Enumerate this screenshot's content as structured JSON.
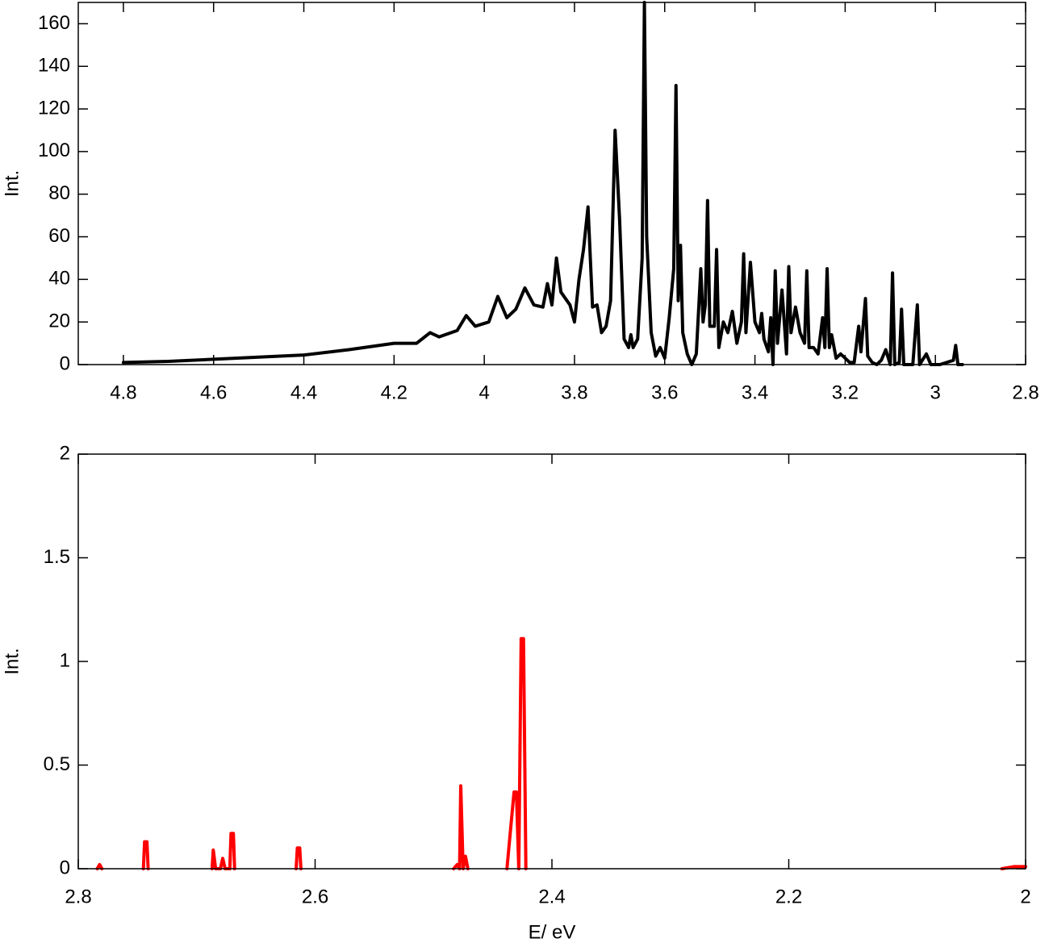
{
  "chart_data": [
    {
      "type": "line",
      "y_label": "Int.",
      "xlim": [
        4.9,
        2.8
      ],
      "xticks": [
        4.8,
        4.6,
        4.4,
        4.2,
        4,
        3.8,
        3.6,
        3.4,
        3.2,
        3,
        2.8
      ],
      "ylim": [
        0,
        170
      ],
      "yticks": [
        0,
        20,
        40,
        60,
        80,
        100,
        120,
        140,
        160
      ],
      "series": [
        {
          "color": "#000000",
          "x": [
            4.8,
            4.7,
            4.6,
            4.5,
            4.4,
            4.3,
            4.2,
            4.15,
            4.12,
            4.1,
            4.06,
            4.04,
            4.02,
            3.99,
            3.97,
            3.95,
            3.93,
            3.91,
            3.89,
            3.87,
            3.86,
            3.85,
            3.84,
            3.83,
            3.81,
            3.8,
            3.79,
            3.78,
            3.77,
            3.76,
            3.75,
            3.74,
            3.73,
            3.72,
            3.71,
            3.7,
            3.69,
            3.68,
            3.675,
            3.67,
            3.66,
            3.65,
            3.645,
            3.64,
            3.63,
            3.62,
            3.61,
            3.6,
            3.59,
            3.58,
            3.575,
            3.57,
            3.565,
            3.56,
            3.55,
            3.54,
            3.53,
            3.52,
            3.515,
            3.51,
            3.505,
            3.5,
            3.49,
            3.485,
            3.48,
            3.47,
            3.46,
            3.45,
            3.44,
            3.43,
            3.425,
            3.42,
            3.41,
            3.4,
            3.39,
            3.385,
            3.38,
            3.37,
            3.365,
            3.36,
            3.355,
            3.35,
            3.34,
            3.33,
            3.325,
            3.32,
            3.31,
            3.3,
            3.29,
            3.285,
            3.28,
            3.27,
            3.26,
            3.25,
            3.245,
            3.24,
            3.235,
            3.23,
            3.22,
            3.21,
            3.2,
            3.19,
            3.18,
            3.17,
            3.165,
            3.155,
            3.15,
            3.14,
            3.13,
            3.12,
            3.11,
            3.1,
            3.095,
            3.09,
            3.08,
            3.075,
            3.07,
            3.05,
            3.04,
            3.035,
            3.02,
            3.01,
            2.99,
            2.96,
            2.955,
            2.95,
            2.94,
            2.9,
            2.85
          ],
          "values": [
            1,
            1.5,
            2.5,
            3.5,
            4.5,
            7,
            10,
            10,
            15,
            13,
            16,
            23,
            18,
            20,
            32,
            22,
            26,
            36,
            28,
            27,
            38,
            28,
            50,
            34,
            28,
            20,
            40,
            54,
            74,
            27,
            28,
            15,
            18,
            30,
            110,
            68,
            12,
            8,
            14,
            8,
            12,
            50,
            170,
            60,
            15,
            4,
            8,
            3,
            22,
            45,
            131,
            30,
            56,
            15,
            5,
            0,
            5,
            45,
            20,
            28,
            77,
            18,
            18,
            54,
            8,
            20,
            15,
            25,
            10,
            20,
            52,
            15,
            48,
            20,
            15,
            24,
            12,
            6,
            22,
            0,
            44,
            10,
            35,
            5,
            46,
            15,
            27,
            15,
            10,
            44,
            8,
            8,
            5,
            22,
            8,
            45,
            8,
            14,
            3,
            5,
            3,
            1,
            1,
            18,
            6,
            31,
            4,
            1,
            0,
            2,
            7,
            0,
            43,
            0,
            1,
            26,
            0,
            0,
            28,
            0,
            5,
            0,
            0,
            2,
            9,
            0,
            0,
            null,
            0.5
          ]
        }
      ]
    },
    {
      "type": "line",
      "y_label": "Int.",
      "x_label": "E/ eV",
      "xlim": [
        2.8,
        2
      ],
      "xticks": [
        2.8,
        2.6,
        2.4,
        2.2,
        2
      ],
      "ylim": [
        0,
        2
      ],
      "yticks": [
        0,
        0.5,
        1,
        1.5,
        2
      ],
      "series": [
        {
          "color": "#ff0000",
          "x": [
            2.784,
            2.782,
            2.78,
            2.76,
            2.745,
            2.744,
            2.742,
            2.741,
            2.7,
            2.687,
            2.686,
            2.684,
            2.68,
            2.678,
            2.676,
            2.672,
            2.671,
            2.669,
            2.668,
            2.64,
            2.616,
            2.615,
            2.613,
            2.612,
            2.5,
            2.483,
            2.48,
            2.478,
            2.477,
            2.475,
            2.473,
            2.471,
            2.45,
            2.438,
            2.432,
            2.43,
            2.428,
            2.426,
            2.424,
            2.422,
            2.1,
            2.02,
            2.01,
            2.0
          ],
          "values": [
            0,
            0.02,
            0,
            null,
            0,
            0.13,
            0.13,
            0,
            null,
            0,
            0.09,
            0,
            0,
            0.05,
            0,
            0,
            0.17,
            0.17,
            0,
            null,
            0,
            0.1,
            0.1,
            0,
            null,
            0,
            0.02,
            0,
            0.4,
            0,
            0.06,
            0,
            null,
            0,
            0.37,
            0.37,
            0,
            1.11,
            1.11,
            0,
            null,
            0,
            0.01,
            0.01
          ]
        }
      ]
    }
  ]
}
